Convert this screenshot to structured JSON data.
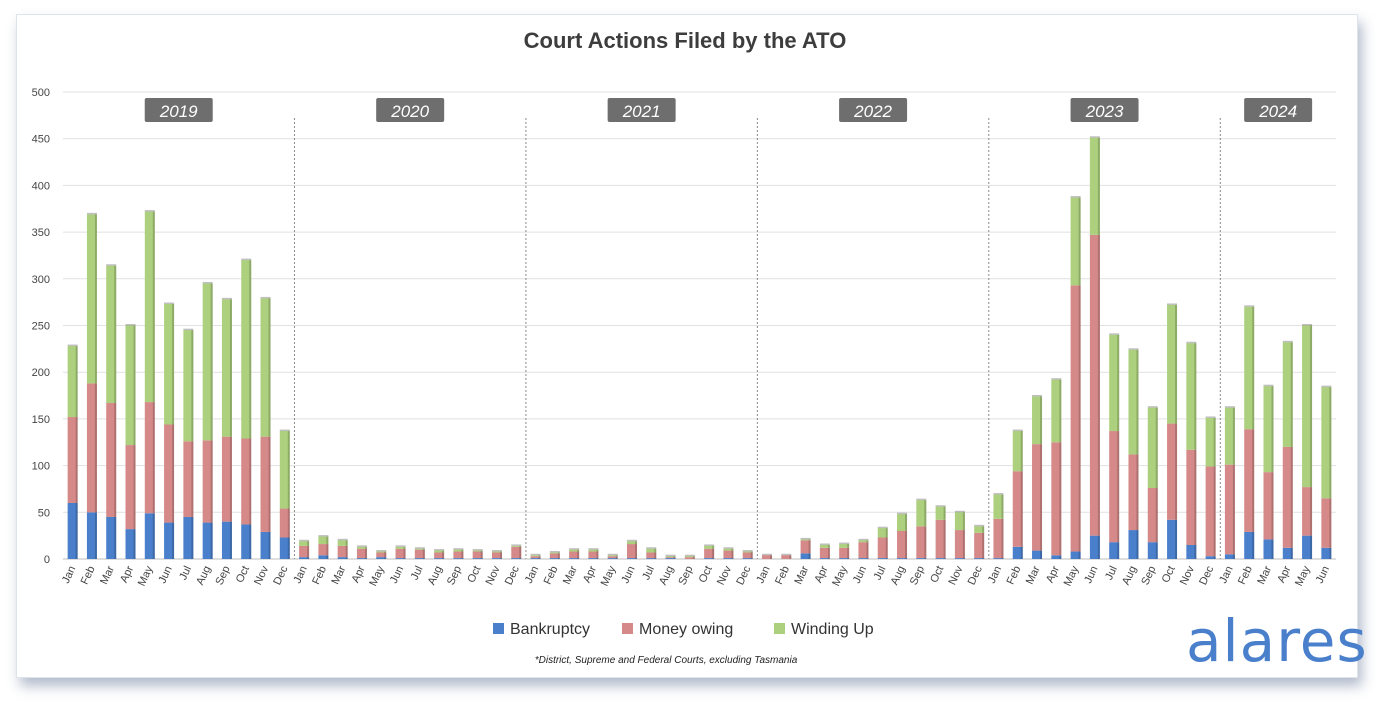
{
  "chart_data": {
    "type": "bar",
    "stacked": true,
    "title": "Court Actions Filed by the ATO",
    "footnote": "*District, Supreme and Federal Courts, excluding Tasmania",
    "xlabel": "",
    "ylabel": "",
    "ylim": [
      0,
      500
    ],
    "yticks": [
      0,
      50,
      100,
      150,
      200,
      250,
      300,
      350,
      400,
      450,
      500
    ],
    "grid": true,
    "legend_position": "bottom",
    "year_groups": [
      {
        "label": "2019",
        "count": 12
      },
      {
        "label": "2020",
        "count": 12
      },
      {
        "label": "2021",
        "count": 12
      },
      {
        "label": "2022",
        "count": 12
      },
      {
        "label": "2023",
        "count": 12
      },
      {
        "label": "2024",
        "count": 6
      }
    ],
    "categories": [
      "Jan",
      "Feb",
      "Mar",
      "Apr",
      "May",
      "Jun",
      "Jul",
      "Aug",
      "Sep",
      "Oct",
      "Nov",
      "Dec",
      "Jan",
      "Feb",
      "Mar",
      "Apr",
      "May",
      "Jun",
      "Jul",
      "Aug",
      "Sep",
      "Oct",
      "Nov",
      "Dec",
      "Jan",
      "Feb",
      "Mar",
      "Apr",
      "May",
      "Jun",
      "Jul",
      "Aug",
      "Sep",
      "Oct",
      "Nov",
      "Dec",
      "Jan",
      "Feb",
      "Mar",
      "Apr",
      "May",
      "Jun",
      "Jul",
      "Aug",
      "Sep",
      "Oct",
      "Nov",
      "Dec",
      "Jan",
      "Feb",
      "Mar",
      "Apr",
      "May",
      "Jun",
      "Jul",
      "Aug",
      "Sep",
      "Oct",
      "Nov",
      "Dec",
      "Jan",
      "Feb",
      "Mar",
      "Apr",
      "May",
      "Jun"
    ],
    "series": [
      {
        "name": "Bankruptcy",
        "color": "#4a7fcb",
        "values": [
          60,
          50,
          45,
          32,
          49,
          39,
          45,
          39,
          40,
          37,
          29,
          23,
          2,
          4,
          2,
          1,
          2,
          1,
          1,
          1,
          1,
          1,
          1,
          1,
          1,
          1,
          1,
          1,
          1,
          1,
          1,
          1,
          0,
          1,
          1,
          1,
          0,
          0,
          6,
          1,
          1,
          1,
          1,
          1,
          1,
          1,
          1,
          1,
          1,
          13,
          9,
          4,
          8,
          25,
          18,
          31,
          18,
          42,
          15,
          3,
          5,
          29,
          21,
          12,
          25,
          12
        ]
      },
      {
        "name": "Money owing",
        "color": "#d58a89",
        "values": [
          92,
          138,
          122,
          90,
          119,
          105,
          81,
          88,
          91,
          92,
          102,
          31,
          12,
          12,
          12,
          10,
          5,
          10,
          9,
          6,
          7,
          7,
          6,
          12,
          2,
          5,
          7,
          7,
          2,
          15,
          6,
          1,
          2,
          10,
          8,
          6,
          4,
          4,
          14,
          11,
          11,
          17,
          22,
          29,
          34,
          41,
          30,
          27,
          42,
          81,
          114,
          121,
          285,
          322,
          119,
          81,
          58,
          103,
          102,
          96,
          96,
          110,
          72,
          108,
          52,
          53
        ]
      },
      {
        "name": "Winding Up",
        "color": "#acd07d",
        "values": [
          76,
          181,
          147,
          128,
          204,
          129,
          119,
          168,
          147,
          191,
          148,
          83,
          5,
          8,
          6,
          2,
          1,
          2,
          1,
          2,
          2,
          1,
          1,
          1,
          1,
          1,
          2,
          2,
          1,
          3,
          4,
          1,
          1,
          3,
          2,
          1,
          0,
          0,
          1,
          3,
          4,
          2,
          10,
          18,
          28,
          14,
          19,
          7,
          26,
          43,
          51,
          67,
          94,
          104,
          103,
          112,
          86,
          127,
          114,
          52,
          61,
          131,
          92,
          112,
          173,
          119
        ]
      }
    ]
  }
}
